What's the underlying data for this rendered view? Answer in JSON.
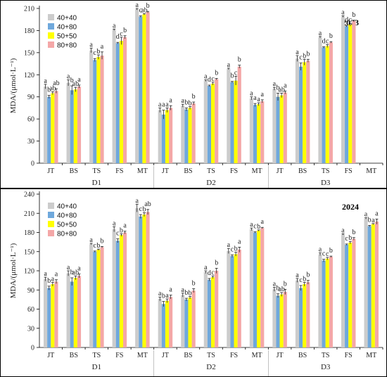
{
  "colors": {
    "series": [
      "#cccccc",
      "#6fa8dc",
      "#ffff00",
      "#f4a7a7"
    ]
  },
  "chart_data": [
    {
      "type": "bar",
      "year_label": "2023",
      "ylabel": "MDA/(μmol·L⁻¹)",
      "ylim": [
        0,
        210
      ],
      "yticks": [
        0,
        30,
        60,
        90,
        120,
        150,
        180,
        210
      ],
      "legend_position": "top-left",
      "groups": [
        "D1",
        "D2",
        "D3"
      ],
      "stages": [
        "JT",
        "BS",
        "TS",
        "FS",
        "MT"
      ],
      "series": [
        {
          "name": "40+40",
          "values": [
            104,
            109,
            153,
            181,
            209,
            72,
            78,
            112,
            128,
            88,
            101,
            142,
            171,
            199
          ],
          "errors": [
            3,
            4,
            3,
            1,
            1,
            3,
            2,
            1,
            1,
            2,
            2,
            4,
            1,
            1
          ]
        },
        {
          "name": "40+80",
          "values": [
            90,
            99,
            140,
            163,
            199,
            66,
            73,
            105,
            110,
            79,
            90,
            131,
            157,
            186
          ],
          "errors": [
            2,
            6,
            2,
            1,
            1,
            6,
            2,
            1,
            1,
            2,
            5,
            5,
            1,
            1
          ]
        },
        {
          "name": "50+50",
          "values": [
            95,
            100,
            144,
            166,
            202,
            72,
            75,
            108,
            112,
            80,
            92,
            137,
            159,
            188
          ],
          "errors": [
            2,
            3,
            3,
            5,
            1,
            3,
            2,
            2,
            6,
            2,
            3,
            4,
            2,
            2
          ]
        },
        {
          "name": "80+80",
          "values": [
            98,
            104,
            146,
            171,
            205,
            75,
            81,
            114,
            131,
            84,
            96,
            139,
            164,
            193
          ],
          "errors": [
            3,
            2,
            5,
            2,
            1,
            3,
            2,
            1,
            2,
            2,
            2,
            2,
            1,
            1
          ]
        }
      ],
      "significance": [
        [
          "a",
          "b",
          "ab",
          "ab"
        ],
        [
          "a",
          "b",
          "ab",
          "a"
        ],
        [
          "a",
          "c",
          "b",
          "a"
        ],
        [
          "a",
          "d",
          "c",
          "b"
        ],
        [
          "a",
          "c",
          "ab",
          "b"
        ],
        [
          "a",
          "a",
          "a",
          "a"
        ],
        [
          "a",
          "b",
          "b",
          "b"
        ],
        [
          "a",
          "d",
          "c",
          "b"
        ],
        [
          "a",
          "b",
          "c",
          "b"
        ],
        [
          "a",
          "a",
          "a",
          "a"
        ],
        [
          "a",
          "b",
          "ab",
          "a"
        ],
        [
          "a",
          "c",
          "b",
          "b"
        ],
        [
          "a",
          "d",
          "c",
          "b"
        ],
        [
          "a",
          "d",
          "c",
          "b"
        ]
      ]
    },
    {
      "type": "bar",
      "year_label": "2024",
      "ylabel": "MDA/(μmol·L⁻¹)",
      "ylim": [
        0,
        240
      ],
      "yticks": [
        0,
        30,
        60,
        90,
        120,
        150,
        180,
        210,
        240
      ],
      "legend_position": "top-left",
      "groups": [
        "D1",
        "D2",
        "D3"
      ],
      "stages": [
        "JT",
        "BS",
        "TS",
        "FS",
        "MT"
      ],
      "series": [
        {
          "name": "40+40",
          "values": [
            107,
            116,
            162,
            185,
            218,
            76,
            82,
            118,
            151,
            185,
            91,
            105,
            146,
            177,
            202
          ],
          "errors": [
            3,
            4,
            1,
            4,
            6,
            3,
            3,
            2,
            4,
            2,
            3,
            3,
            2,
            1,
            1
          ]
        },
        {
          "name": "40+80",
          "values": [
            93,
            103,
            150,
            167,
            205,
            68,
            75,
            106,
            143,
            180,
            81,
            93,
            136,
            161,
            190
          ],
          "errors": [
            3,
            6,
            1,
            3,
            3,
            4,
            2,
            2,
            2,
            1,
            3,
            4,
            2,
            1,
            1
          ]
        },
        {
          "name": "50+50",
          "values": [
            99,
            109,
            153,
            176,
            208,
            73,
            78,
            110,
            146,
            183,
            83,
            99,
            139,
            164,
            193
          ],
          "errors": [
            3,
            3,
            1,
            2,
            3,
            3,
            2,
            2,
            3,
            1,
            3,
            3,
            2,
            2,
            1
          ]
        },
        {
          "name": "80+80",
          "values": [
            103,
            112,
            157,
            180,
            212,
            79,
            89,
            120,
            153,
            187,
            87,
            102,
            142,
            170,
            197
          ],
          "errors": [
            3,
            3,
            1,
            2,
            4,
            3,
            3,
            4,
            4,
            1,
            4,
            3,
            1,
            2,
            4
          ]
        }
      ],
      "significance": [
        [
          "a",
          "b",
          "a",
          "a"
        ],
        [
          "a",
          "b",
          "ab",
          "a"
        ],
        [
          "a",
          "c",
          "b",
          "b"
        ],
        [
          "a",
          "c",
          "b",
          "a"
        ],
        [
          "a",
          "c",
          "b",
          "ab"
        ],
        [
          "a",
          "b",
          "a",
          "a"
        ],
        [
          "a",
          "b",
          "b",
          "b"
        ],
        [
          "a",
          "d",
          "c",
          "b"
        ],
        [
          "a",
          "c",
          "b",
          "a"
        ],
        [
          "a",
          "c",
          "b",
          "a"
        ],
        [
          "a",
          "b",
          "ab",
          "b"
        ],
        [
          "a",
          "c",
          "b",
          "b"
        ],
        [
          "a",
          "c",
          "c",
          "b"
        ],
        [
          "a",
          "c",
          "b",
          "b"
        ],
        [
          "a",
          "b",
          "a",
          "a"
        ]
      ]
    }
  ]
}
